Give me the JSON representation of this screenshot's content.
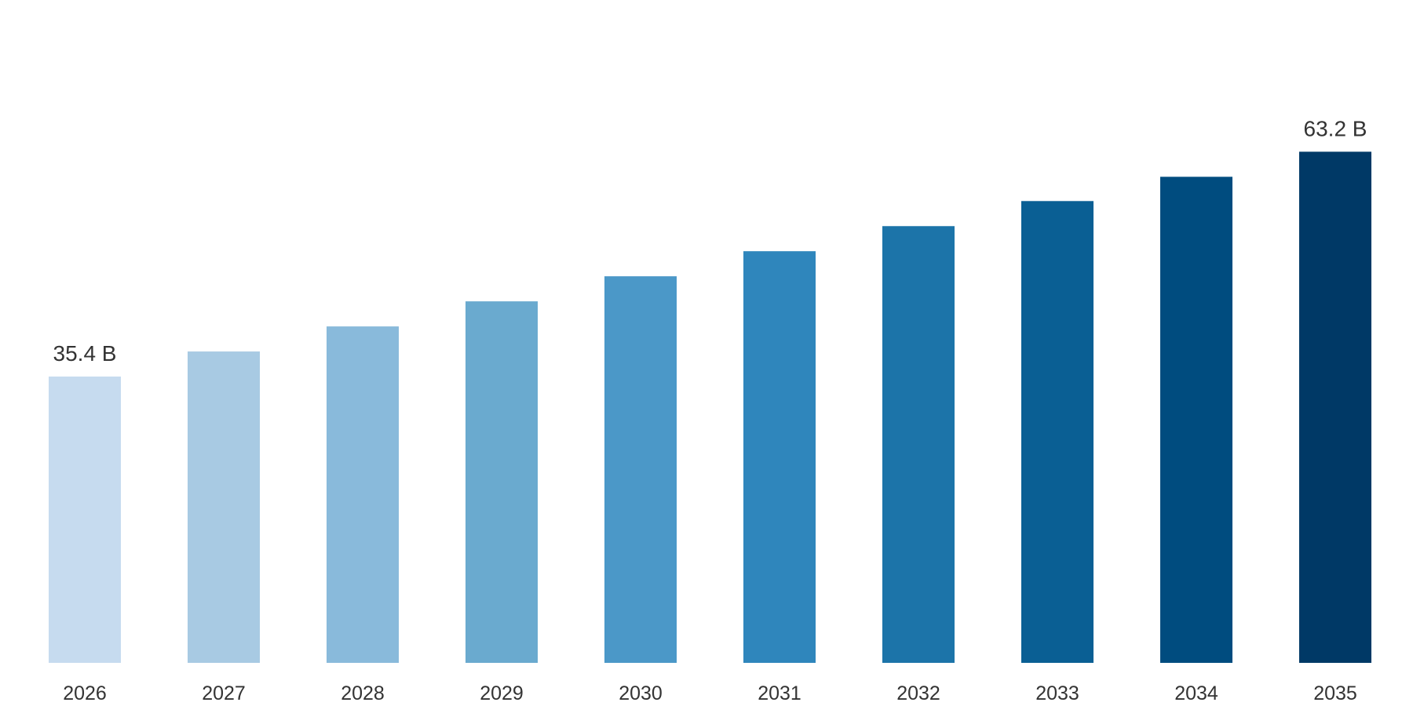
{
  "chart_data": {
    "type": "bar",
    "title": "",
    "xlabel": "",
    "ylabel": "",
    "categories": [
      "2026",
      "2027",
      "2028",
      "2029",
      "2030",
      "2031",
      "2032",
      "2033",
      "2034",
      "2035"
    ],
    "values": [
      35.4,
      38.5,
      41.6,
      44.7,
      47.8,
      50.9,
      54.0,
      57.1,
      60.1,
      63.2
    ],
    "value_labels": [
      "35.4 B",
      "",
      "",
      "",
      "",
      "",
      "",
      "",
      "",
      "63.2 B"
    ],
    "ylim": [
      0,
      80
    ],
    "grid": false,
    "legend": "none",
    "colors": [
      "#c6dbef",
      "#a8cae3",
      "#89badb",
      "#6aaacf",
      "#4b98c8",
      "#2f86bc",
      "#1c74a9",
      "#0a5f94",
      "#004c7f",
      "#003966"
    ]
  }
}
